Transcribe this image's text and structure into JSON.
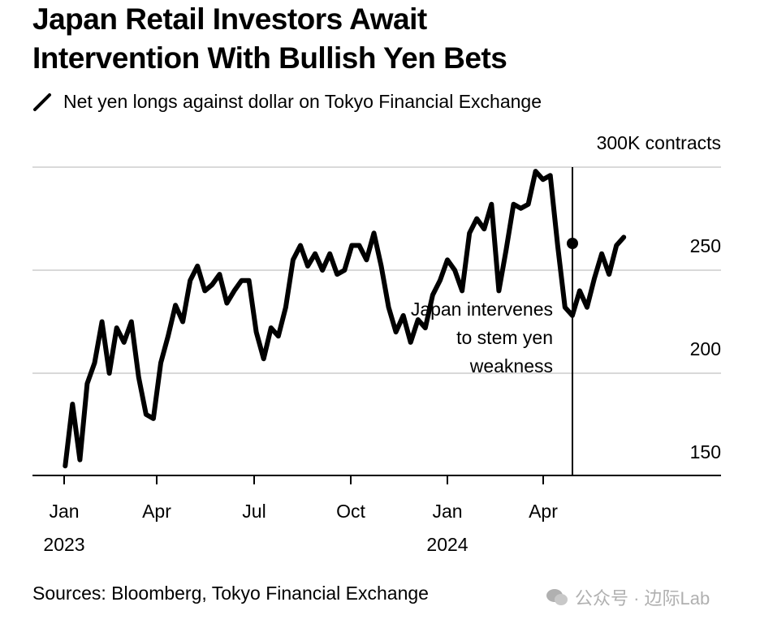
{
  "header": {
    "title_line1": "Japan Retail Investors Await",
    "title_line2": "Intervention With Bullish Yen Bets",
    "legend_label": "Net yen longs against dollar on Tokyo Financial Exchange",
    "legend_icon": "line-legend-icon"
  },
  "axis": {
    "y_unit_label": "300K contracts",
    "y_ticks": [
      "250",
      "200",
      "150"
    ],
    "x_ticks": [
      {
        "month": "Jan",
        "year": "2023"
      },
      {
        "month": "Apr",
        "year": ""
      },
      {
        "month": "Jul",
        "year": ""
      },
      {
        "month": "Oct",
        "year": ""
      },
      {
        "month": "Jan",
        "year": "2024"
      },
      {
        "month": "Apr",
        "year": ""
      }
    ]
  },
  "annotation": {
    "line1": "Japan intervenes",
    "line2": "to stem yen",
    "line3": "weakness"
  },
  "footer": {
    "source": "Sources: Bloomberg, Tokyo Financial Exchange",
    "watermark": "公众号 · 边际Lab"
  },
  "colors": {
    "line": "#000000",
    "grid": "#d9d9d9",
    "axis": "#000000",
    "watermark": "#b0b0b0"
  },
  "chart_data": {
    "type": "line",
    "title": "Japan Retail Investors Await Intervention With Bullish Yen Bets",
    "subtitle": "Net yen longs against dollar on Tokyo Financial Exchange",
    "xlabel": "",
    "ylabel": "K contracts",
    "ylim": [
      140,
      300
    ],
    "yticks": [
      150,
      200,
      250,
      300
    ],
    "xticks": [
      "Jan 2023",
      "Apr",
      "Jul",
      "Oct",
      "Jan 2024",
      "Apr"
    ],
    "grid": true,
    "legend_position": "top",
    "annotations": [
      {
        "x": "2024-04-29",
        "y": 261,
        "text": "Japan intervenes to stem yen weakness"
      }
    ],
    "series": [
      {
        "name": "Net yen longs",
        "x": [
          "2023-01-02",
          "2023-01-09",
          "2023-01-16",
          "2023-01-23",
          "2023-01-30",
          "2023-02-06",
          "2023-02-13",
          "2023-02-20",
          "2023-02-27",
          "2023-03-06",
          "2023-03-13",
          "2023-03-20",
          "2023-03-27",
          "2023-04-03",
          "2023-04-10",
          "2023-04-17",
          "2023-04-24",
          "2023-05-01",
          "2023-05-08",
          "2023-05-15",
          "2023-05-22",
          "2023-05-29",
          "2023-06-05",
          "2023-06-12",
          "2023-06-19",
          "2023-06-26",
          "2023-07-03",
          "2023-07-10",
          "2023-07-17",
          "2023-07-24",
          "2023-07-31",
          "2023-08-07",
          "2023-08-14",
          "2023-08-21",
          "2023-08-28",
          "2023-09-04",
          "2023-09-11",
          "2023-09-18",
          "2023-09-25",
          "2023-10-02",
          "2023-10-09",
          "2023-10-16",
          "2023-10-23",
          "2023-10-30",
          "2023-11-06",
          "2023-11-13",
          "2023-11-20",
          "2023-11-27",
          "2023-12-04",
          "2023-12-11",
          "2023-12-18",
          "2023-12-25",
          "2024-01-01",
          "2024-01-08",
          "2024-01-15",
          "2024-01-22",
          "2024-01-29",
          "2024-02-05",
          "2024-02-12",
          "2024-02-19",
          "2024-02-26",
          "2024-03-04",
          "2024-03-11",
          "2024-03-18",
          "2024-03-25",
          "2024-04-01",
          "2024-04-08",
          "2024-04-15",
          "2024-04-22",
          "2024-04-29",
          "2024-05-06",
          "2024-05-13",
          "2024-05-20",
          "2024-05-27",
          "2024-06-03",
          "2024-06-10",
          "2024-06-17"
        ],
        "values": [
          155,
          185,
          158,
          195,
          205,
          225,
          200,
          222,
          215,
          225,
          198,
          180,
          178,
          205,
          218,
          233,
          225,
          245,
          252,
          240,
          243,
          248,
          234,
          240,
          245,
          245,
          220,
          207,
          222,
          218,
          232,
          255,
          262,
          252,
          258,
          250,
          258,
          248,
          250,
          262,
          262,
          255,
          268,
          252,
          232,
          220,
          228,
          215,
          226,
          222,
          238,
          245,
          255,
          250,
          240,
          268,
          275,
          270,
          282,
          240,
          260,
          282,
          280,
          282,
          298,
          294,
          296,
          262,
          232,
          228,
          240,
          232,
          246,
          258,
          248,
          262,
          266
        ]
      }
    ]
  }
}
